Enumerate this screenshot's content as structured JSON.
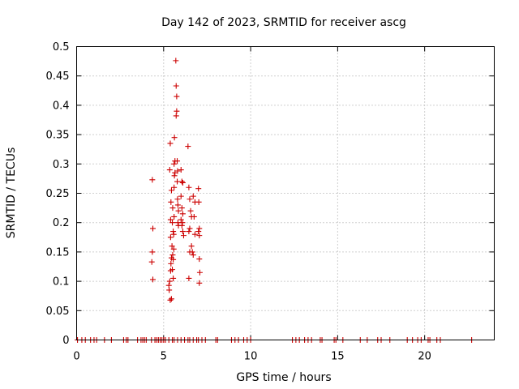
{
  "chart_data": {
    "type": "scatter",
    "title": "Day 142 of 2023, SRMTID for receiver ascg",
    "xlabel": "GPS time / hours",
    "ylabel": "SRMTID / TECUs",
    "xlim": [
      0,
      24
    ],
    "ylim": [
      0,
      0.5
    ],
    "xticks": [
      0,
      5,
      10,
      15,
      20
    ],
    "xtick_labels": [
      "0",
      "5",
      "10",
      "15",
      "20"
    ],
    "yticks": [
      0,
      0.05,
      0.1,
      0.15,
      0.2,
      0.25,
      0.3,
      0.35,
      0.4,
      0.45,
      0.5
    ],
    "ytick_labels": [
      "0",
      "0.05",
      "0.1",
      "0.15",
      "0.2",
      "0.25",
      "0.3",
      "0.35",
      "0.4",
      "0.45",
      "0.5"
    ],
    "grid": true,
    "marker": "+",
    "color": "#cc0000",
    "series": [
      {
        "name": "SRMTID",
        "points": [
          [
            0.05,
            0
          ],
          [
            0.3,
            0
          ],
          [
            0.5,
            0
          ],
          [
            0.8,
            0
          ],
          [
            1.0,
            0
          ],
          [
            1.15,
            0
          ],
          [
            1.6,
            0
          ],
          [
            2.0,
            0
          ],
          [
            2.7,
            0
          ],
          [
            2.85,
            0
          ],
          [
            2.95,
            0
          ],
          [
            3.5,
            0
          ],
          [
            3.7,
            0
          ],
          [
            3.8,
            0
          ],
          [
            3.9,
            0
          ],
          [
            4.0,
            0
          ],
          [
            4.3,
            0
          ],
          [
            4.5,
            0
          ],
          [
            4.6,
            0
          ],
          [
            4.7,
            0
          ],
          [
            4.8,
            0
          ],
          [
            4.9,
            0
          ],
          [
            5.0,
            0
          ],
          [
            5.1,
            0
          ],
          [
            5.3,
            0
          ],
          [
            5.5,
            0
          ],
          [
            5.6,
            0
          ],
          [
            5.8,
            0
          ],
          [
            6.0,
            0
          ],
          [
            6.2,
            0
          ],
          [
            6.4,
            0
          ],
          [
            6.5,
            0
          ],
          [
            6.7,
            0
          ],
          [
            6.9,
            0
          ],
          [
            7.0,
            0
          ],
          [
            7.2,
            0
          ],
          [
            7.4,
            0
          ],
          [
            8.0,
            0
          ],
          [
            8.1,
            0
          ],
          [
            8.9,
            0
          ],
          [
            9.1,
            0
          ],
          [
            9.3,
            0
          ],
          [
            9.6,
            0
          ],
          [
            9.8,
            0
          ],
          [
            10.0,
            0
          ],
          [
            12.4,
            0
          ],
          [
            12.6,
            0
          ],
          [
            12.8,
            0
          ],
          [
            13.1,
            0
          ],
          [
            13.3,
            0
          ],
          [
            13.5,
            0
          ],
          [
            14.0,
            0
          ],
          [
            14.1,
            0
          ],
          [
            14.8,
            0
          ],
          [
            14.9,
            0
          ],
          [
            15.3,
            0
          ],
          [
            16.3,
            0
          ],
          [
            16.7,
            0
          ],
          [
            17.3,
            0
          ],
          [
            17.5,
            0
          ],
          [
            18.0,
            0
          ],
          [
            19.0,
            0
          ],
          [
            19.3,
            0
          ],
          [
            19.6,
            0
          ],
          [
            19.8,
            0
          ],
          [
            20.2,
            0
          ],
          [
            20.3,
            0
          ],
          [
            20.7,
            0
          ],
          [
            20.9,
            0
          ],
          [
            22.7,
            0
          ],
          [
            4.35,
            0.273
          ],
          [
            4.38,
            0.19
          ],
          [
            4.35,
            0.15
          ],
          [
            4.32,
            0.133
          ],
          [
            4.38,
            0.103
          ],
          [
            5.3,
            0.093
          ],
          [
            5.32,
            0.085
          ],
          [
            5.35,
            0.1
          ],
          [
            5.38,
            0.068
          ],
          [
            5.4,
            0.118
          ],
          [
            5.42,
            0.13
          ],
          [
            5.45,
            0.07
          ],
          [
            5.4,
            0.205
          ],
          [
            5.42,
            0.235
          ],
          [
            5.45,
            0.255
          ],
          [
            5.35,
            0.29
          ],
          [
            5.38,
            0.335
          ],
          [
            5.4,
            0.175
          ],
          [
            5.45,
            0.14
          ],
          [
            5.48,
            0.16
          ],
          [
            5.5,
            0.12
          ],
          [
            5.52,
            0.145
          ],
          [
            5.55,
            0.105
          ],
          [
            5.5,
            0.2
          ],
          [
            5.52,
            0.225
          ],
          [
            5.55,
            0.185
          ],
          [
            5.58,
            0.18
          ],
          [
            5.6,
            0.26
          ],
          [
            5.62,
            0.28
          ],
          [
            5.6,
            0.3
          ],
          [
            5.65,
            0.305
          ],
          [
            5.62,
            0.345
          ],
          [
            5.65,
            0.285
          ],
          [
            5.6,
            0.21
          ],
          [
            5.55,
            0.137
          ],
          [
            5.58,
            0.155
          ],
          [
            5.7,
            0.476
          ],
          [
            5.72,
            0.433
          ],
          [
            5.75,
            0.415
          ],
          [
            5.75,
            0.39
          ],
          [
            5.72,
            0.382
          ],
          [
            5.78,
            0.305
          ],
          [
            5.8,
            0.288
          ],
          [
            5.78,
            0.27
          ],
          [
            5.82,
            0.23
          ],
          [
            5.8,
            0.24
          ],
          [
            5.85,
            0.22
          ],
          [
            5.82,
            0.2
          ],
          [
            5.85,
            0.195
          ],
          [
            6.0,
            0.29
          ],
          [
            6.05,
            0.27
          ],
          [
            6.1,
            0.268
          ],
          [
            6.0,
            0.245
          ],
          [
            6.05,
            0.225
          ],
          [
            6.1,
            0.215
          ],
          [
            6.0,
            0.205
          ],
          [
            6.05,
            0.195
          ],
          [
            6.1,
            0.185
          ],
          [
            6.15,
            0.178
          ],
          [
            6.08,
            0.2
          ],
          [
            6.4,
            0.33
          ],
          [
            6.45,
            0.26
          ],
          [
            6.5,
            0.24
          ],
          [
            6.55,
            0.22
          ],
          [
            6.6,
            0.21
          ],
          [
            6.5,
            0.19
          ],
          [
            6.45,
            0.185
          ],
          [
            6.5,
            0.15
          ],
          [
            6.45,
            0.105
          ],
          [
            6.6,
            0.16
          ],
          [
            6.65,
            0.15
          ],
          [
            6.7,
            0.145
          ],
          [
            6.7,
            0.245
          ],
          [
            6.75,
            0.21
          ],
          [
            6.8,
            0.235
          ],
          [
            6.8,
            0.18
          ],
          [
            7.0,
            0.258
          ],
          [
            7.02,
            0.235
          ],
          [
            7.05,
            0.19
          ],
          [
            7.0,
            0.185
          ],
          [
            7.05,
            0.178
          ],
          [
            7.05,
            0.138
          ],
          [
            7.08,
            0.115
          ],
          [
            7.05,
            0.097
          ]
        ]
      }
    ]
  }
}
